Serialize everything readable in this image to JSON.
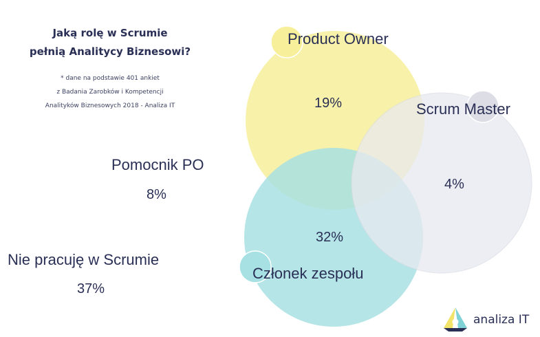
{
  "title": {
    "line1": "Jaką rolę w Scrumie",
    "line2": "pełnią Analitycy Biznesowi?"
  },
  "note": {
    "line1": "* dane na podstawie 401 ankiet",
    "line2": "z Badania Zarobków i Kompetencji",
    "line3": "Analityków Biznesowych 2018 - Analiza IT"
  },
  "roles": {
    "product_owner": {
      "label": "Product Owner",
      "value": "19%",
      "color": "#f7ef9a"
    },
    "scrum_master": {
      "label": "Scrum Master",
      "value": "4%",
      "color": "#e8e9ef"
    },
    "team_member": {
      "label": "Członek zespołu",
      "value": "32%",
      "color": "#a8e1e3"
    },
    "po_helper": {
      "label": "Pomocnik PO",
      "value": "8%"
    },
    "not_scrum": {
      "label": "Nie pracuję w Scrumie",
      "value": "37%"
    }
  },
  "logo": {
    "text": "analiza IT",
    "colors": [
      "#7fd3d6",
      "#f2e36a",
      "#2a2f55"
    ]
  }
}
